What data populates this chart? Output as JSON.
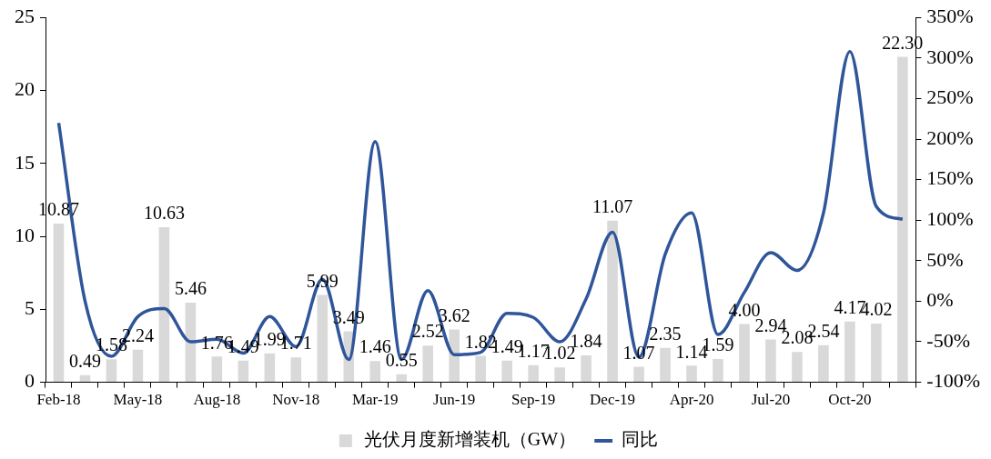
{
  "chart_data": {
    "type": "bar",
    "categories": [
      "Feb-18",
      null,
      null,
      "May-18",
      null,
      null,
      "Aug-18",
      null,
      null,
      "Nov-18",
      null,
      null,
      "Mar-19",
      null,
      null,
      "Jun-19",
      null,
      null,
      "Sep-19",
      null,
      null,
      "Dec-19",
      null,
      null,
      "Apr-20",
      null,
      null,
      "Jul-20",
      null,
      null,
      "Oct-20",
      null,
      null
    ],
    "series": [
      {
        "name": "光伏月度新增装机（GW）",
        "color": "#d9d9d9",
        "values": [
          10.87,
          0.49,
          1.58,
          2.24,
          10.63,
          5.46,
          1.76,
          1.49,
          1.99,
          1.71,
          5.99,
          3.49,
          1.46,
          0.55,
          2.52,
          3.62,
          1.82,
          1.49,
          1.17,
          1.02,
          1.84,
          11.07,
          1.07,
          2.35,
          1.14,
          1.59,
          4.0,
          2.94,
          2.08,
          2.54,
          4.17,
          4.02,
          22.3
        ],
        "value_labels": [
          "10.87",
          "0.49",
          "1.58",
          "2.24",
          "10.63",
          "5.46",
          "1.76",
          "1.49",
          "1.99",
          "1.71",
          "5.99",
          "3.49",
          "1.46",
          "0.55",
          "2.52",
          "3.62",
          "1.82",
          "1.49",
          "1.17",
          "1.02",
          "1.84",
          "11.07",
          "1.07",
          "2.35",
          "1.14",
          "1.59",
          "4.00",
          "2.94",
          "2.08",
          "2.54",
          "4.17",
          "4.02",
          "22.30"
        ]
      },
      {
        "name": "同比",
        "type": "line",
        "axis": "y2",
        "color": "#2f559a",
        "values": [
          220,
          0,
          -68,
          -19,
          -9,
          -50,
          -47,
          -64,
          -19,
          -56,
          27,
          -72,
          197,
          -72,
          13,
          -66,
          -63,
          -15,
          -20,
          -50,
          3,
          85,
          -69,
          58,
          109,
          -41,
          11,
          60,
          38,
          109,
          308,
          117,
          101
        ]
      }
    ],
    "ylim": [
      0,
      25
    ],
    "yticks": [
      0,
      5,
      10,
      15,
      20,
      25
    ],
    "y2lim": [
      -100,
      350
    ],
    "y2ticks": [
      {
        "value": -100,
        "label": "-100%"
      },
      {
        "value": -50,
        "label": "-50%"
      },
      {
        "value": 0,
        "label": "0%"
      },
      {
        "value": 50,
        "label": "50%"
      },
      {
        "value": 100,
        "label": "100%"
      },
      {
        "value": 150,
        "label": "150%"
      },
      {
        "value": 200,
        "label": "200%"
      },
      {
        "value": 250,
        "label": "250%"
      },
      {
        "value": 300,
        "label": "300%"
      },
      {
        "value": 350,
        "label": "350%"
      }
    ],
    "grid": false,
    "legend": "bottom",
    "marker": "none"
  }
}
